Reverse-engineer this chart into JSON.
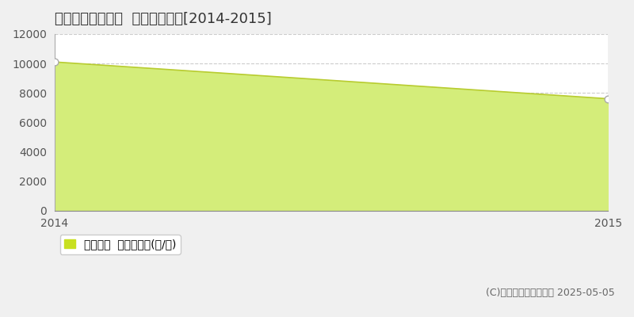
{
  "title": "宮城郡松島町松島  農地価格推移[2014-2015]",
  "x_values": [
    2014,
    2015
  ],
  "y_values": [
    10100,
    7600
  ],
  "fill_color": "#d4ed7a",
  "line_color": "#b8cc30",
  "marker_color": "white",
  "marker_edge_color": "#aaaaaa",
  "ylim": [
    0,
    12000
  ],
  "xlim": [
    2014.0,
    2015.0
  ],
  "yticks": [
    0,
    2000,
    4000,
    6000,
    8000,
    10000,
    12000
  ],
  "xticks": [
    2014,
    2015
  ],
  "grid_color": "#cccccc",
  "background_color": "#f0f0f0",
  "plot_bg_color": "#ffffff",
  "legend_label": "農地価格  平均坪単価(円/坪)",
  "legend_color": "#c8e020",
  "copyright_text": "(C)土地価格ドットコム 2025-05-05",
  "title_fontsize": 13,
  "axis_fontsize": 10,
  "legend_fontsize": 10,
  "copyright_fontsize": 9
}
